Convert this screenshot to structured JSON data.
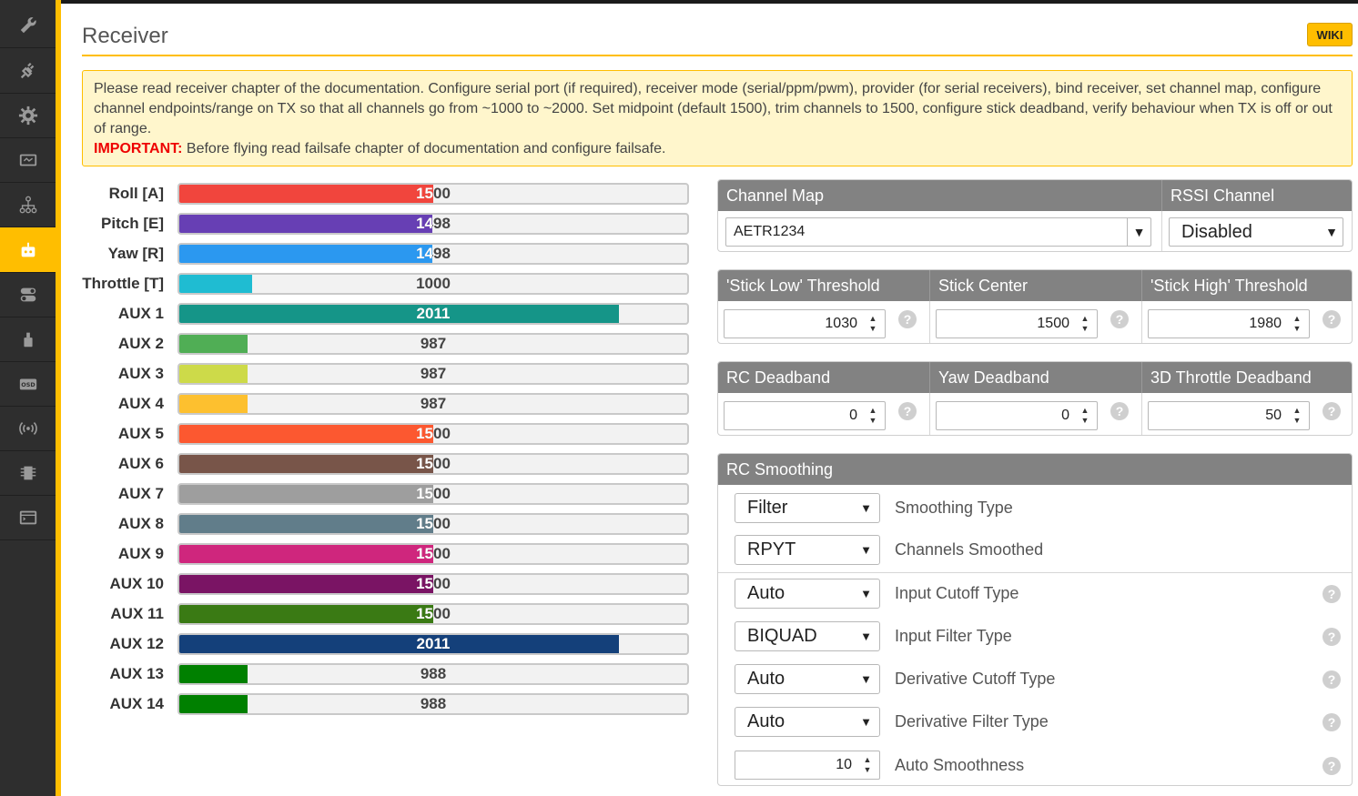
{
  "page": {
    "title": "Receiver",
    "wiki_label": "WIKI"
  },
  "note": {
    "text": "Please read receiver chapter of the documentation. Configure serial port (if required), receiver mode (serial/ppm/pwm), provider (for serial receivers), bind receiver, set channel map, configure channel endpoints/range on TX so that all channels go from ~1000 to ~2000. Set midpoint (default 1500), trim channels to 1500, configure stick deadband, verify behaviour when TX is off or out of range.",
    "important_label": "IMPORTANT:",
    "important_text": " Before flying read failsafe chapter of documentation and configure failsafe."
  },
  "sidebar": {
    "items": [
      {
        "icon": "wrench-icon"
      },
      {
        "icon": "power-plug-icon"
      },
      {
        "icon": "gear-icon"
      },
      {
        "icon": "battery-icon"
      },
      {
        "icon": "network-icon"
      },
      {
        "icon": "receiver-icon",
        "active": true
      },
      {
        "icon": "modes-toggle-icon"
      },
      {
        "icon": "motor-icon"
      },
      {
        "icon": "osd-icon"
      },
      {
        "icon": "wireless-icon"
      },
      {
        "icon": "blackbox-icon"
      },
      {
        "icon": "cli-icon"
      }
    ]
  },
  "channels": [
    {
      "label": "Roll [A]",
      "value": 1500,
      "color": "#f1453d"
    },
    {
      "label": "Pitch [E]",
      "value": 1498,
      "color": "#673fb4"
    },
    {
      "label": "Yaw [R]",
      "value": 1498,
      "color": "#2b98f0"
    },
    {
      "label": "Throttle [T]",
      "value": 1000,
      "color": "#1fbcd2"
    },
    {
      "label": "AUX 1",
      "value": 2011,
      "color": "#159588"
    },
    {
      "label": "AUX 2",
      "value": 987,
      "color": "#50ae55"
    },
    {
      "label": "AUX 3",
      "value": 987,
      "color": "#cdda49"
    },
    {
      "label": "AUX 4",
      "value": 987,
      "color": "#fdc02f"
    },
    {
      "label": "AUX 5",
      "value": 1500,
      "color": "#fc5830"
    },
    {
      "label": "AUX 6",
      "value": 1500,
      "color": "#785549"
    },
    {
      "label": "AUX 7",
      "value": 1500,
      "color": "#9e9e9e"
    },
    {
      "label": "AUX 8",
      "value": 1500,
      "color": "#617d8a"
    },
    {
      "label": "AUX 9",
      "value": 1500,
      "color": "#cf267d"
    },
    {
      "label": "AUX 10",
      "value": 1500,
      "color": "#7a1464"
    },
    {
      "label": "AUX 11",
      "value": 1500,
      "color": "#3a7a14"
    },
    {
      "label": "AUX 12",
      "value": 2011,
      "color": "#14407a"
    },
    {
      "label": "AUX 13",
      "value": 988,
      "color": "#008000"
    },
    {
      "label": "AUX 14",
      "value": 988,
      "color": "#008000"
    }
  ],
  "channel_range": {
    "min": 800,
    "max": 2200
  },
  "channel_map": {
    "header": "Channel Map",
    "value": "AETR1234"
  },
  "rssi": {
    "header": "RSSI Channel",
    "value": "Disabled"
  },
  "thresholds": {
    "stick_low": {
      "header": "'Stick Low' Threshold",
      "value": "1030"
    },
    "stick_center": {
      "header": "Stick Center",
      "value": "1500"
    },
    "stick_high": {
      "header": "'Stick High' Threshold",
      "value": "1980"
    }
  },
  "deadbands": {
    "rc": {
      "header": "RC Deadband",
      "value": "0"
    },
    "yaw": {
      "header": "Yaw Deadband",
      "value": "0"
    },
    "throttle3d": {
      "header": "3D Throttle Deadband",
      "value": "50"
    }
  },
  "smoothing": {
    "header": "RC Smoothing",
    "rows": [
      {
        "value": "Filter",
        "label": "Smoothing Type",
        "help": false
      },
      {
        "value": "RPYT",
        "label": "Channels Smoothed",
        "help": false
      },
      {
        "value": "Auto",
        "label": "Input Cutoff Type",
        "help": true
      },
      {
        "value": "BIQUAD",
        "label": "Input Filter Type",
        "help": true
      },
      {
        "value": "Auto",
        "label": "Derivative Cutoff Type",
        "help": true
      },
      {
        "value": "Auto",
        "label": "Derivative Filter Type",
        "help": true
      }
    ],
    "auto_smoothness": {
      "value": "10",
      "label": "Auto Smoothness"
    }
  },
  "colors": {
    "accent": "#ffbe00",
    "sidebar_bg": "#2e2e2e",
    "panel_header": "#828282",
    "note_bg": "#fff6cc",
    "important": "#ee0000"
  }
}
